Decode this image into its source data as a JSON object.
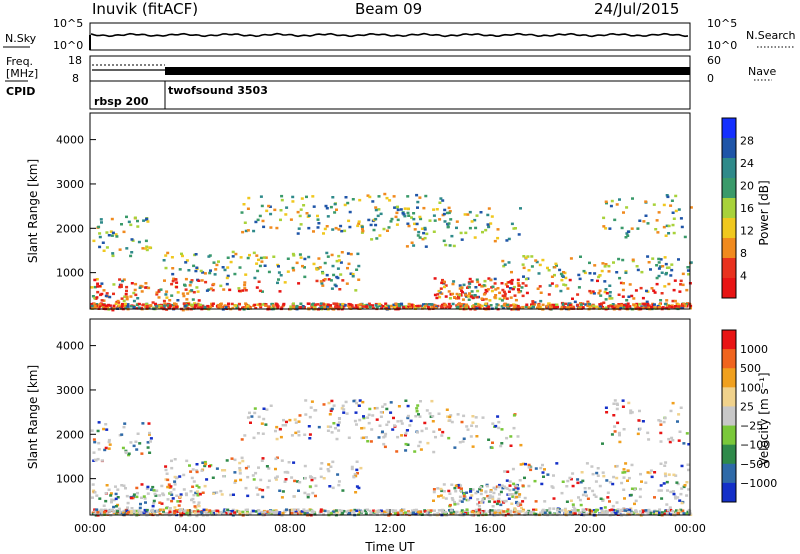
{
  "header": {
    "station": "Inuvik (fitACF)",
    "beam": "Beam 09",
    "date": "24/Jul/2015"
  },
  "side_labels": {
    "nsky": "N.Sky",
    "nsearch": "N.Search",
    "freq_line1": "Freq.",
    "freq_line2": "[MHz]",
    "nave": "Nave",
    "cpid": "CPID"
  },
  "cpid_labels": [
    "rbsp 200",
    "twofsound 3503"
  ],
  "colors": {
    "power_scale": [
      "#1430ff",
      "#1f55a8",
      "#2f8a8a",
      "#3a9a6a",
      "#a8d23a",
      "#f0c81e",
      "#f08a1e",
      "#e8321e",
      "#e81414"
    ],
    "velocity_scale": [
      "#e81414",
      "#f0641e",
      "#f0a01e",
      "#f0d28c",
      "#c8c8c8",
      "#7ac83a",
      "#2f8a4a",
      "#2f6aa8",
      "#1430c8"
    ],
    "ground_scatter": "#a0a0a0"
  },
  "chart_data": [
    {
      "type": "line",
      "panel": "noise",
      "ylabel_left": "N.Sky",
      "ylabel_right": "N.Search",
      "left_ticks": [
        "10^5",
        "10^0"
      ],
      "right_ticks": [
        "10^5",
        "10^0"
      ],
      "note": "near-constant noise level across the day"
    },
    {
      "type": "line",
      "panel": "frequency",
      "ylabel_left": "Freq. [MHz]",
      "ylabel_right": "Nave",
      "left_ticks": [
        "18",
        "8"
      ],
      "right_ticks": [
        "60",
        "0"
      ],
      "cpid_switch_time": "03:00"
    },
    {
      "type": "heatmap",
      "panel": "power",
      "xlabel": "",
      "ylabel": "Slant Range [km]",
      "y_ticks": [
        "1000",
        "2000",
        "3000",
        "4000"
      ],
      "ylim": [
        180,
        4600
      ],
      "colorbar_label": "Power [dB]",
      "colorbar_ticks": [
        "4",
        "8",
        "12",
        "16",
        "20",
        "24",
        "28"
      ]
    },
    {
      "type": "heatmap",
      "panel": "velocity",
      "xlabel": "Time UT",
      "ylabel": "Slant Range [km]",
      "x_ticks": [
        "00:00",
        "04:00",
        "08:00",
        "12:00",
        "16:00",
        "20:00",
        "00:00"
      ],
      "y_ticks": [
        "1000",
        "2000",
        "3000",
        "4000"
      ],
      "ylim": [
        180,
        4600
      ],
      "colorbar_label": "Velocity [m s⁻¹]",
      "colorbar_ticks": [
        "1000",
        "500",
        "100",
        "25",
        "−25",
        "−100",
        "−500",
        "−1000"
      ]
    }
  ]
}
